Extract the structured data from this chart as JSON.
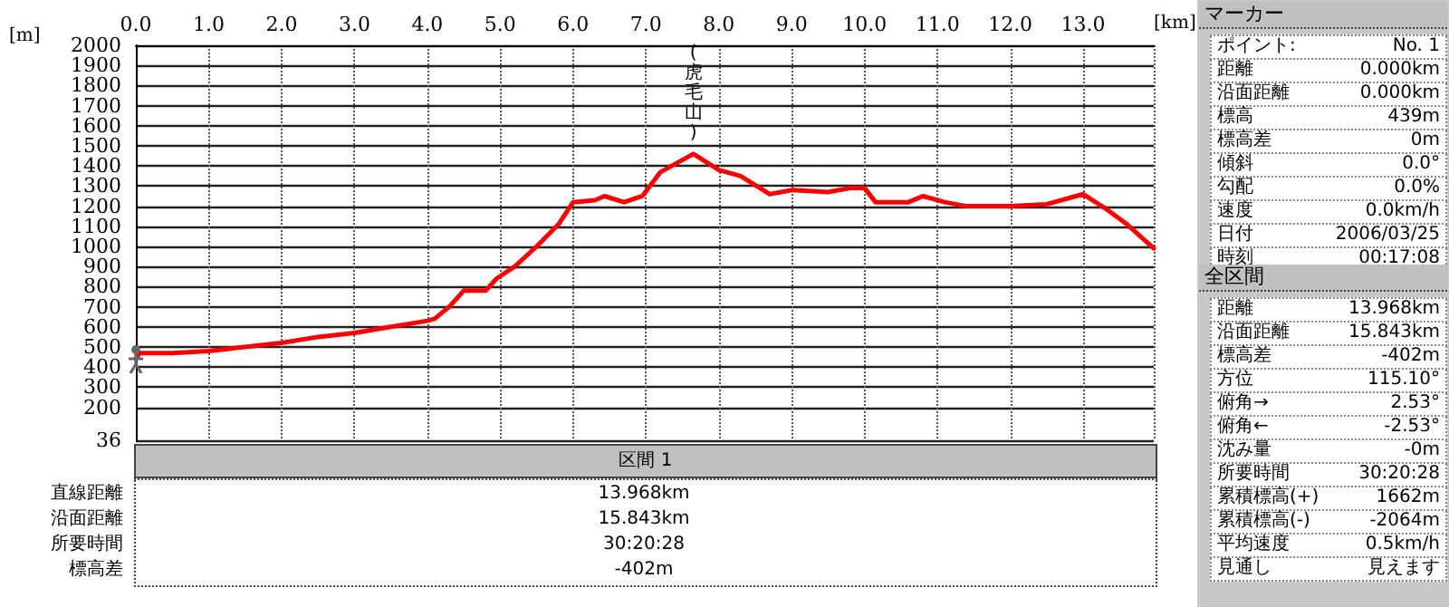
{
  "chart_data": {
    "type": "line",
    "xlabel": "[km]",
    "ylabel": "[m]",
    "x": [
      0,
      0.05,
      0.5,
      1.0,
      2.0,
      2.5,
      3.0,
      3.5,
      4.0,
      4.1,
      4.3,
      4.5,
      4.8,
      4.95,
      5.2,
      5.5,
      5.8,
      6.0,
      6.3,
      6.43,
      6.7,
      6.95,
      7.2,
      7.6,
      7.65,
      8.0,
      8.3,
      8.7,
      9.0,
      9.5,
      9.8,
      10.0,
      10.15,
      10.6,
      10.8,
      11.1,
      11.4,
      12.0,
      12.5,
      12.8,
      13.0,
      13.3,
      13.6,
      13.968
    ],
    "series": [
      {
        "color": "#ff0000",
        "values": [
          440,
          470,
          470,
          480,
          520,
          550,
          570,
          600,
          630,
          640,
          700,
          780,
          780,
          840,
          900,
          1000,
          1110,
          1220,
          1230,
          1250,
          1220,
          1250,
          1370,
          1450,
          1460,
          1380,
          1350,
          1260,
          1280,
          1270,
          1290,
          1290,
          1220,
          1220,
          1250,
          1220,
          1200,
          1200,
          1210,
          1240,
          1260,
          1190,
          1110,
          990
        ]
      }
    ],
    "xlim": [
      0,
      13.968
    ],
    "xticks": [
      {
        "value": 0,
        "label": "0.0"
      },
      {
        "value": 1,
        "label": "1.0"
      },
      {
        "value": 2,
        "label": "2.0"
      },
      {
        "value": 3,
        "label": "3.0"
      },
      {
        "value": 4,
        "label": "4.0"
      },
      {
        "value": 5,
        "label": "5.0"
      },
      {
        "value": 6,
        "label": "6.0"
      },
      {
        "value": 7,
        "label": "7.0"
      },
      {
        "value": 8,
        "label": "8.0"
      },
      {
        "value": 9,
        "label": "9.0"
      },
      {
        "value": 10,
        "label": "10.0"
      },
      {
        "value": 11,
        "label": "11.0"
      },
      {
        "value": 12,
        "label": "12.0"
      },
      {
        "value": 13,
        "label": "13.0"
      }
    ],
    "ylim": [
      36,
      2000
    ],
    "yticks": [
      36,
      200,
      300,
      400,
      500,
      600,
      700,
      800,
      900,
      1000,
      1100,
      1200,
      1300,
      1400,
      1500,
      1600,
      1700,
      1800,
      1900,
      2000
    ],
    "grid": true,
    "marker": "none",
    "line_style": "solid",
    "annotations": [
      {
        "text": "(虎毛山)",
        "x": 7.65,
        "y": 1460
      },
      "マーカー",
      "ポイント:",
      "No. 1",
      "距離",
      "0.000km",
      "沿面距離",
      "0.000km",
      "標高",
      "439m",
      "標高差",
      "0m",
      "傾斜",
      "0.0°",
      "勾配",
      "0.0%",
      "速度",
      "0.0km/h",
      "日付",
      "2006/03/25",
      "時刻",
      "00:17:08",
      "全区間",
      "距離",
      "13.968km",
      "沿面距離",
      "15.843km",
      "標高差",
      "-402m",
      "方位",
      "115.10°",
      "俯角→",
      "2.53°",
      "俯角←",
      "-2.53°",
      "沈み量",
      "-0m",
      "所要時間",
      "30:20:28",
      "累積標高(+)",
      "1662m",
      "累積標高(-)",
      "-2064m",
      "平均速度",
      "0.5km/h",
      "見通し",
      "見えます",
      "区間 1",
      "直線距離",
      "13.968km",
      "沿面距離",
      "15.843km",
      "所要時間",
      "30:20:28",
      "標高差",
      "-402m"
    ]
  }
}
